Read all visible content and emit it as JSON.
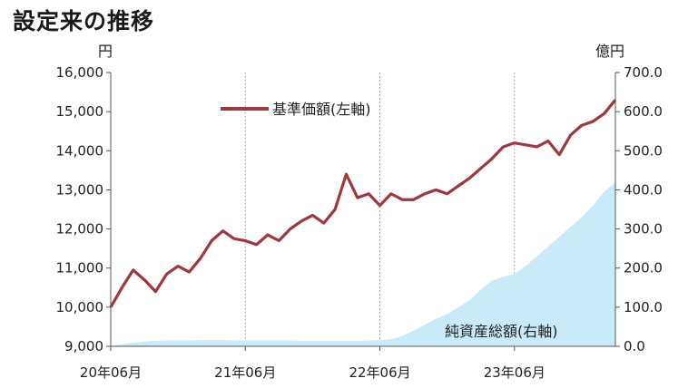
{
  "title": "設定来の推移",
  "chart_data": {
    "type": "line+area",
    "left_axis": {
      "unit": "円",
      "ylim": [
        9000,
        16000
      ],
      "ticks": [
        "9,000",
        "10,000",
        "11,000",
        "12,000",
        "13,000",
        "14,000",
        "15,000",
        "16,000"
      ]
    },
    "right_axis": {
      "unit": "億円",
      "ylim": [
        0,
        700
      ],
      "ticks": [
        "0.0",
        "100.0",
        "200.0",
        "300.0",
        "400.0",
        "500.0",
        "600.0",
        "700.0"
      ]
    },
    "x_labels": [
      "20年06月",
      "21年06月",
      "22年06月",
      "23年06月"
    ],
    "x_range": [
      "2020-06",
      "2024-03"
    ],
    "x_tick_months": [
      "2020-06",
      "2021-06",
      "2022-06",
      "2023-06"
    ],
    "series": [
      {
        "name": "基準価額(左軸)",
        "axis": "left",
        "kind": "line",
        "color": "#a0373d",
        "x": [
          "2020-06",
          "2020-07",
          "2020-08",
          "2020-09",
          "2020-10",
          "2020-11",
          "2020-12",
          "2021-01",
          "2021-02",
          "2021-03",
          "2021-04",
          "2021-05",
          "2021-06",
          "2021-07",
          "2021-08",
          "2021-09",
          "2021-10",
          "2021-11",
          "2021-12",
          "2022-01",
          "2022-02",
          "2022-03",
          "2022-04",
          "2022-05",
          "2022-06",
          "2022-07",
          "2022-08",
          "2022-09",
          "2022-10",
          "2022-11",
          "2022-12",
          "2023-01",
          "2023-02",
          "2023-03",
          "2023-04",
          "2023-05",
          "2023-06",
          "2023-07",
          "2023-08",
          "2023-09",
          "2023-10",
          "2023-11",
          "2023-12",
          "2024-01",
          "2024-02",
          "2024-03"
        ],
        "values": [
          10000,
          10500,
          10950,
          10700,
          10400,
          10850,
          11050,
          10900,
          11250,
          11700,
          11950,
          11750,
          11700,
          11600,
          11850,
          11700,
          12000,
          12200,
          12350,
          12150,
          12500,
          13400,
          12800,
          12900,
          12600,
          12900,
          12750,
          12750,
          12900,
          13000,
          12900,
          13100,
          13300,
          13550,
          13800,
          14100,
          14200,
          14150,
          14100,
          14250,
          13900,
          14400,
          14650,
          14750,
          14950,
          15300
        ]
      },
      {
        "name": "純資産総額(右軸)",
        "axis": "right",
        "kind": "area",
        "color": "#c9eaf9",
        "x": [
          "2020-06",
          "2020-07",
          "2020-08",
          "2020-09",
          "2020-10",
          "2020-11",
          "2020-12",
          "2021-01",
          "2021-02",
          "2021-03",
          "2021-04",
          "2021-05",
          "2021-06",
          "2021-07",
          "2021-08",
          "2021-09",
          "2021-10",
          "2021-11",
          "2021-12",
          "2022-01",
          "2022-02",
          "2022-03",
          "2022-04",
          "2022-05",
          "2022-06",
          "2022-07",
          "2022-08",
          "2022-09",
          "2022-10",
          "2022-11",
          "2022-12",
          "2023-01",
          "2023-02",
          "2023-03",
          "2023-04",
          "2023-05",
          "2023-06",
          "2023-07",
          "2023-08",
          "2023-09",
          "2023-10",
          "2023-11",
          "2023-12",
          "2024-01",
          "2024-02",
          "2024-03"
        ],
        "values": [
          0,
          5,
          9,
          12,
          14,
          15,
          15,
          15,
          16,
          16,
          16,
          15,
          15,
          15,
          15,
          15,
          15,
          14,
          14,
          14,
          14,
          14,
          14,
          15,
          16,
          18,
          26,
          40,
          55,
          70,
          82,
          100,
          118,
          145,
          168,
          178,
          185,
          205,
          230,
          255,
          280,
          305,
          330,
          360,
          395,
          420
        ]
      }
    ]
  }
}
